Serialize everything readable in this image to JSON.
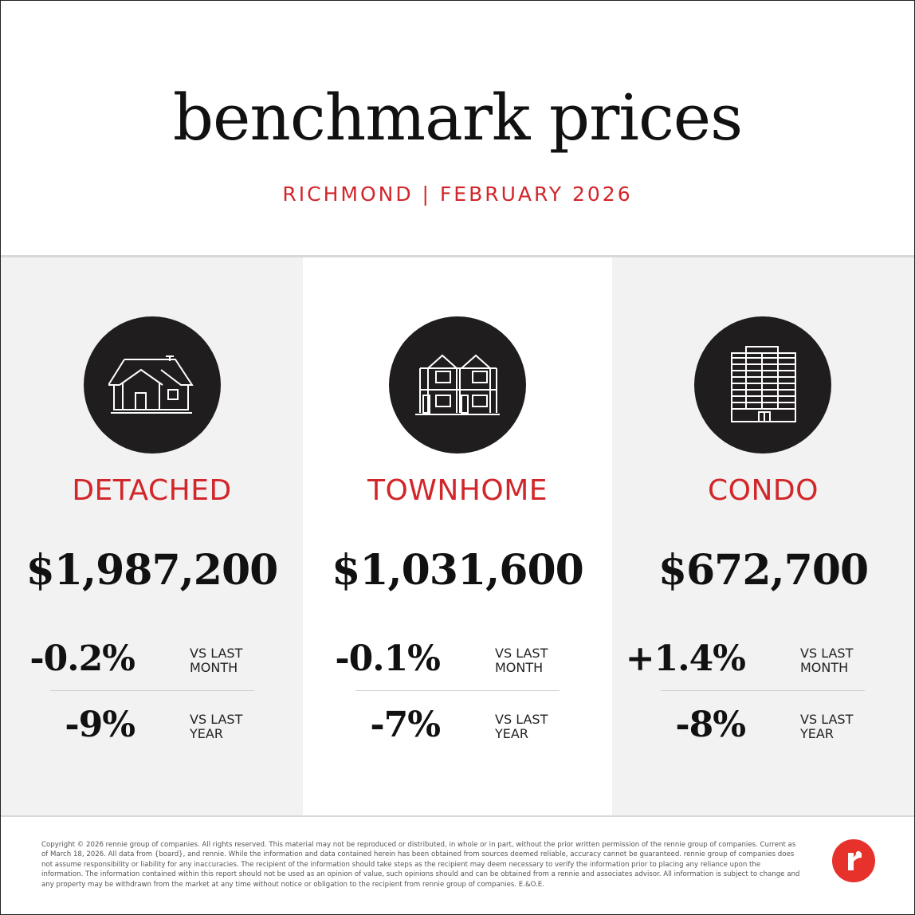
{
  "header": {
    "title": "benchmark prices",
    "subtitle": "RICHMOND | FEBRUARY 2026"
  },
  "colors": {
    "accent": "#d1262a",
    "icon_bg": "#1f1d1e",
    "panel_gray": "#f2f2f2",
    "logo_red": "#e7312b"
  },
  "properties": [
    {
      "icon": "detached-house-icon",
      "type": "DETACHED",
      "price": "$1,987,200",
      "month_change": "-0.2%",
      "month_label_1": "VS LAST",
      "month_label_2": "MONTH",
      "year_change": "-9%",
      "year_label_1": "VS LAST",
      "year_label_2": "YEAR"
    },
    {
      "icon": "townhome-icon",
      "type": "TOWNHOME",
      "price": "$1,031,600",
      "month_change": "-0.1%",
      "month_label_1": "VS LAST",
      "month_label_2": "MONTH",
      "year_change": "-7%",
      "year_label_1": "VS LAST",
      "year_label_2": "YEAR"
    },
    {
      "icon": "condo-building-icon",
      "type": "CONDO",
      "price": "$672,700",
      "month_change": "+1.4%",
      "month_label_1": "VS LAST",
      "month_label_2": "MONTH",
      "year_change": "-8%",
      "year_label_1": "VS LAST",
      "year_label_2": "YEAR"
    }
  ],
  "footer": {
    "disclaimer": "Copyright © 2026 rennie group of companies. All rights reserved. This material may not be reproduced or distributed, in whole or in part, without the prior written permission of the rennie group of companies. Current as of March 18, 2026. All data from {board}, and rennie. While the information and data contained herein has been obtained from sources deemed reliable, accuracy cannot be guaranteed. rennie group of companies does not assume responsibility or liability for any inaccuracies. The recipient of the information should take steps as the recipient may deem necessary to verify the information prior to placing any reliance upon the information. The information contained within this report should not be used as an opinion of value, such opinions should and can be obtained from a rennie and associates advisor. All information is subject to change and any property may be withdrawn from the market at any time without notice or obligation to the recipient from rennie group of companies. E.&O.E.",
    "logo": "rennie-logo-icon"
  }
}
